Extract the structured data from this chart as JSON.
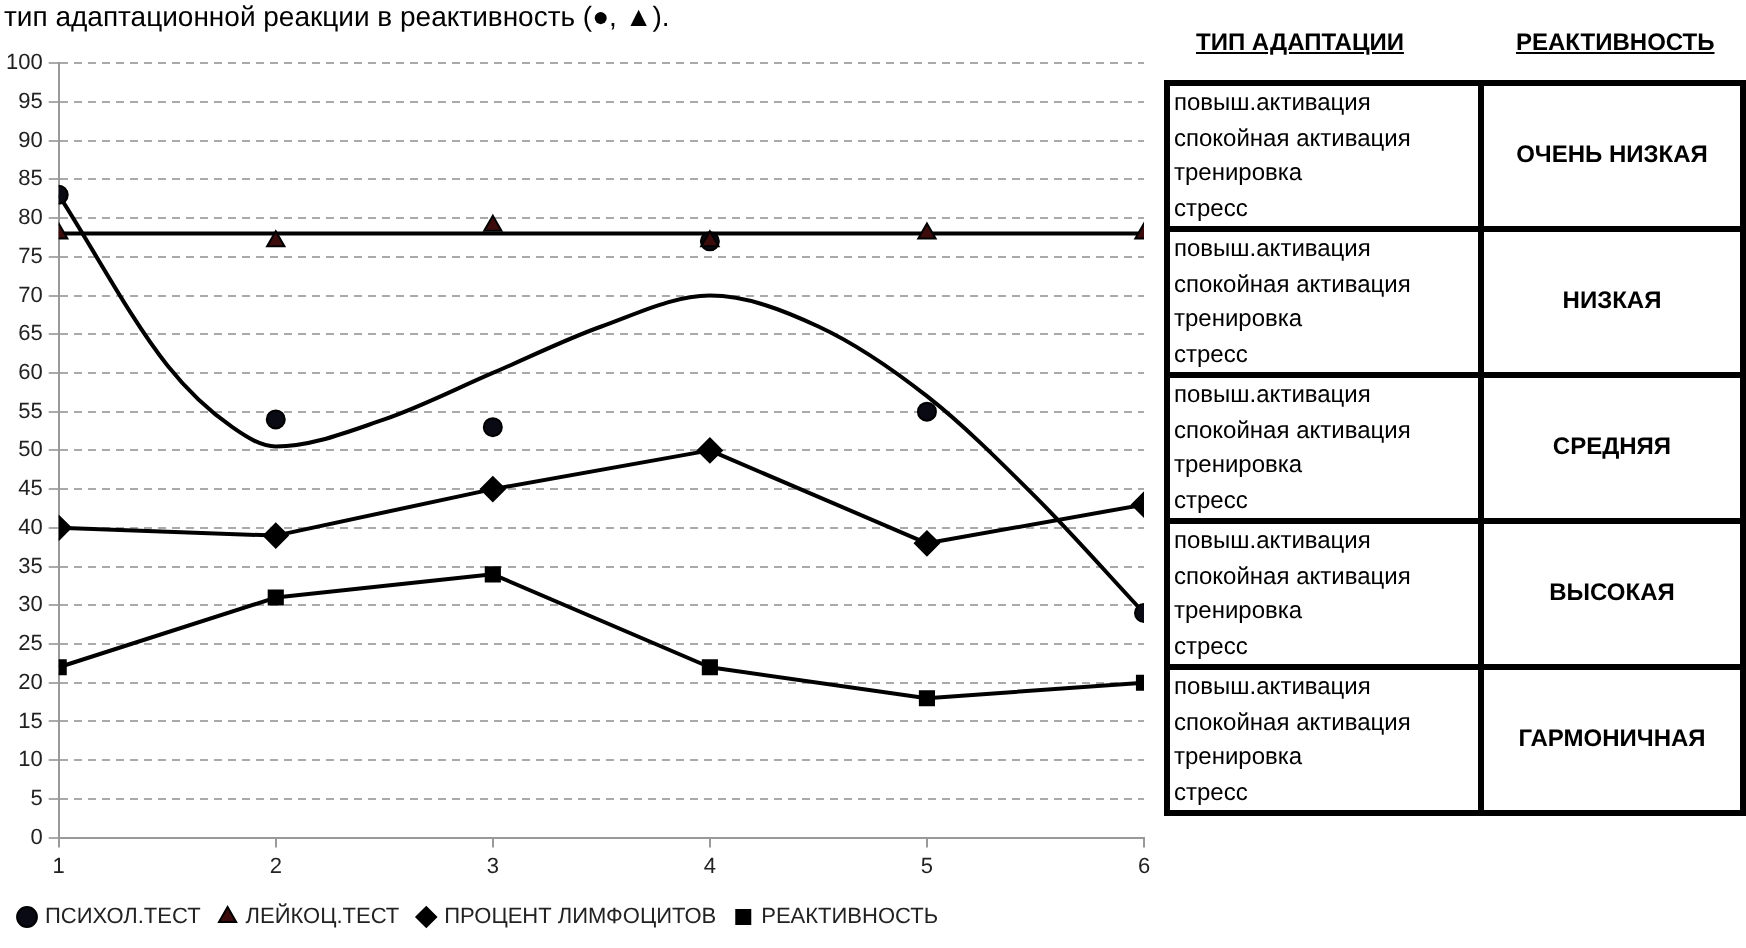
{
  "chart_data": [
    {
      "type": "line",
      "title": "тип адаптационной реакции в реактивность (●, ▲).",
      "x": [
        1,
        2,
        3,
        4,
        5,
        6
      ],
      "xlim": [
        1,
        6
      ],
      "xticks": [
        1,
        2,
        3,
        4,
        5,
        6
      ],
      "ylim": [
        0,
        100
      ],
      "yticks": [
        0,
        5,
        10,
        15,
        20,
        25,
        30,
        35,
        40,
        45,
        50,
        55,
        60,
        65,
        70,
        75,
        80,
        85,
        90,
        95,
        100
      ],
      "grid": "y",
      "legend": "bottom",
      "series": [
        {
          "name": "ПСИХОЛ.ТЕСТ",
          "type": "scatter",
          "marker": "circle",
          "color": "#0a0a14",
          "values": [
            83,
            54,
            53,
            77,
            55,
            29
          ]
        },
        {
          "name": "ЛЕЙКОЦ.ТЕСТ",
          "type": "scatter",
          "marker": "triangle",
          "color": "#3c0c0c",
          "values": [
            78,
            77,
            79,
            77,
            78,
            78
          ]
        },
        {
          "name": "ПРОЦЕНТ ЛИМФОЦИТОВ",
          "type": "line",
          "marker": "diamond",
          "color": "#000000",
          "values": [
            40,
            39,
            45,
            50,
            38,
            43
          ]
        },
        {
          "name": "РЕАКТИВНОСТЬ",
          "type": "line",
          "marker": "square",
          "color": "#000000",
          "values": [
            22,
            31,
            34,
            22,
            18,
            20
          ]
        },
        {
          "type": "line",
          "marker": "none",
          "color": "#000000",
          "x": [
            1,
            1.5,
            1.8,
            2,
            2.5,
            3,
            3.5,
            4,
            4.5,
            5,
            5.5,
            6
          ],
          "values": [
            83,
            61,
            53,
            50.5,
            54,
            60,
            66,
            70,
            66,
            57,
            44,
            29
          ]
        },
        {
          "type": "line",
          "marker": "none",
          "color": "#000000",
          "x": [
            1,
            6
          ],
          "values": [
            78,
            78
          ]
        }
      ]
    },
    {
      "type": "other",
      "xlabel": "ТИП АДАПТАЦИИ",
      "ylabel": "РЕАКТИВНОСТЬ",
      "categories": [
        "ОЧЕНЬ НИЗКАЯ",
        "НИЗКАЯ",
        "СРЕДНЯЯ",
        "ВЫСОКАЯ",
        "ГАРМОНИЧНАЯ"
      ],
      "annotations": [
        "повыш.активация",
        "спокойная активация",
        "тренировка",
        "стресс",
        "повыш.активация",
        "спокойная активация",
        "тренировка",
        "стресс",
        "повыш.активация",
        "спокойная активация",
        "тренировка",
        "стресс",
        "повыш.активация",
        "спокойная активация",
        "тренировка",
        "стресс",
        "повыш.активация",
        "спокойная активация",
        "тренировка",
        "стресс"
      ]
    }
  ]
}
